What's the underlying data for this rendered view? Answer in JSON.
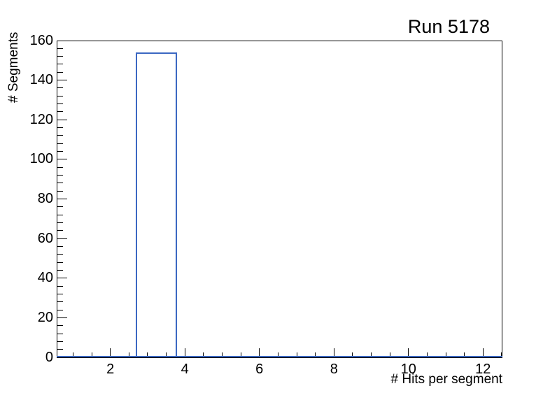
{
  "chart_data": {
    "type": "bar",
    "title": "Run 5178",
    "xlabel": "# Hits per segment",
    "ylabel": "# Segments",
    "xlim": [
      0.56,
      12.52
    ],
    "ylim": [
      0,
      160
    ],
    "x_major_ticks": [
      2,
      4,
      6,
      8,
      10,
      12
    ],
    "x_tick_labels": [
      "2",
      "4",
      "6",
      "8",
      "10",
      "12"
    ],
    "x_minor_tick_start": 1.0,
    "x_minor_tick_end": 12.5,
    "x_minor_tick_step": 0.5,
    "y_major_ticks": [
      0,
      20,
      40,
      60,
      80,
      100,
      120,
      140,
      160
    ],
    "y_tick_labels": [
      "0",
      "20",
      "40",
      "60",
      "80",
      "100",
      "120",
      "140",
      "160"
    ],
    "y_minor_tick_step": 4,
    "grid": false,
    "legend": false,
    "frame_color": "#000000",
    "background_color": "#ffffff",
    "text_color": "#000000",
    "series": [
      {
        "name": "hits-per-segment-histogram",
        "style": "step-outline",
        "line_color": "#3b68c2",
        "line_width": 2,
        "baseline_y": 0,
        "bins": [
          {
            "x_low": 2.68,
            "x_high": 3.79,
            "count": 154
          }
        ]
      }
    ]
  }
}
